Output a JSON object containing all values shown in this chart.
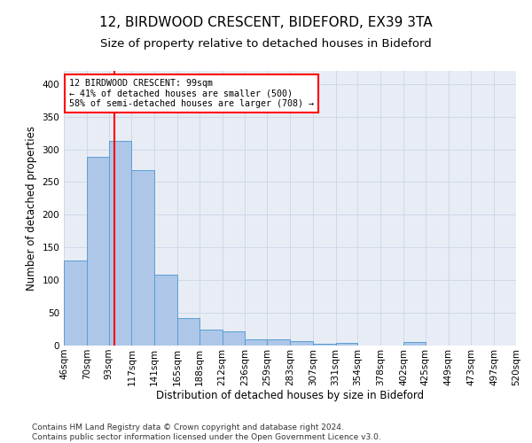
{
  "title1": "12, BIRDWOOD CRESCENT, BIDEFORD, EX39 3TA",
  "title2": "Size of property relative to detached houses in Bideford",
  "xlabel": "Distribution of detached houses by size in Bideford",
  "ylabel": "Number of detached properties",
  "footer1": "Contains HM Land Registry data © Crown copyright and database right 2024.",
  "footer2": "Contains public sector information licensed under the Open Government Licence v3.0.",
  "annotation_line1": "12 BIRDWOOD CRESCENT: 99sqm",
  "annotation_line2": "← 41% of detached houses are smaller (500)",
  "annotation_line3": "58% of semi-detached houses are larger (708) →",
  "bar_color": "#aec6e8",
  "bar_edge_color": "#5a9fd4",
  "red_line_x": 99,
  "bin_edges": [
    46,
    70,
    93,
    117,
    141,
    165,
    188,
    212,
    236,
    259,
    283,
    307,
    331,
    354,
    378,
    402,
    425,
    449,
    473,
    497,
    520
  ],
  "bar_heights": [
    130,
    288,
    313,
    268,
    108,
    42,
    25,
    22,
    10,
    10,
    7,
    3,
    4,
    0,
    0,
    5,
    0,
    0,
    0,
    0
  ],
  "ylim": [
    0,
    420
  ],
  "yticks": [
    0,
    50,
    100,
    150,
    200,
    250,
    300,
    350,
    400
  ],
  "grid_color": "#d0d8e8",
  "bg_color": "#e8edf5",
  "annotation_box_color": "white",
  "annotation_box_edge": "red",
  "title_fontsize": 11,
  "subtitle_fontsize": 9.5,
  "xlabel_fontsize": 8.5,
  "ylabel_fontsize": 8.5,
  "tick_fontsize": 7.5,
  "footer_fontsize": 6.5
}
